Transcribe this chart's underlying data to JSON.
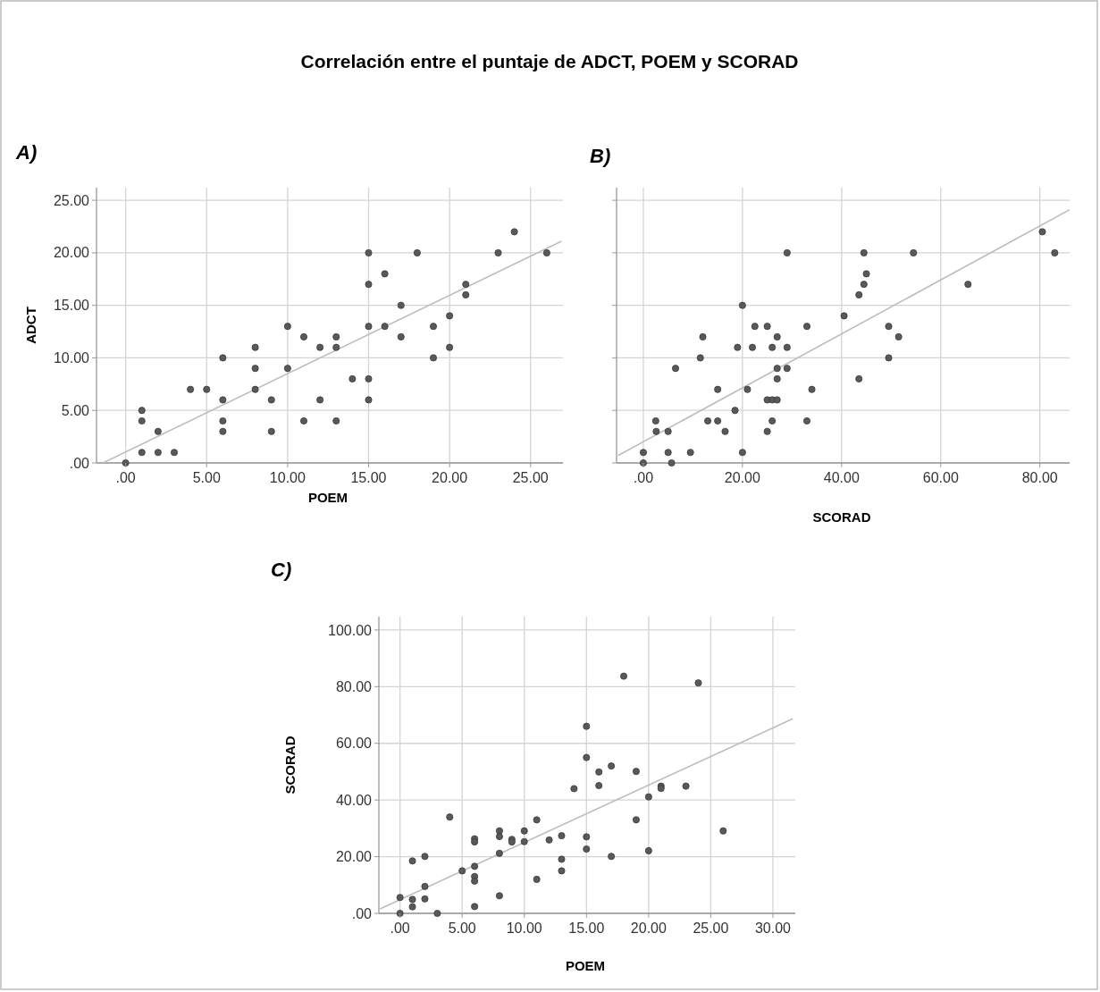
{
  "chart_data": [
    {
      "type": "scatter",
      "title": "A)",
      "annotations": [
        "Correlación entre el puntaje de ADCT, POEM y SCORAD"
      ],
      "xlabel": "POEM",
      "ylabel": "ADCT",
      "xlim": [
        -1.8,
        27
      ],
      "ylim": [
        0,
        26.2
      ],
      "xticks": [
        {
          "value": 0,
          "label": ".00"
        },
        {
          "value": 5,
          "label": "5.00"
        },
        {
          "value": 10,
          "label": "10.00"
        },
        {
          "value": 15,
          "label": "15.00"
        },
        {
          "value": 20,
          "label": "20.00"
        },
        {
          "value": 25,
          "label": "25.00"
        }
      ],
      "yticks": [
        {
          "value": 0,
          "label": ".00"
        },
        {
          "value": 5,
          "label": "5.00"
        },
        {
          "value": 10,
          "label": "10.00"
        },
        {
          "value": 15,
          "label": "15.00"
        },
        {
          "value": 20,
          "label": "20.00"
        },
        {
          "value": 25,
          "label": "25.00"
        }
      ],
      "grid": true,
      "series": [
        {
          "type": "scatter",
          "marker": "circle",
          "color": "#595959",
          "x": [
            0,
            1,
            1,
            1,
            2,
            2,
            3,
            4,
            5,
            6,
            6,
            6,
            6,
            8,
            8,
            8,
            9,
            9,
            10,
            10,
            11,
            11,
            12,
            12,
            13,
            13,
            13,
            14,
            15,
            15,
            15,
            15,
            15,
            16,
            16,
            17,
            17,
            18,
            19,
            19,
            20,
            20,
            21,
            21,
            23,
            24,
            26
          ],
          "values": [
            0,
            5,
            4,
            1,
            3,
            1,
            1,
            7,
            7,
            10,
            6,
            4,
            3,
            11,
            9,
            7,
            6,
            3,
            13,
            9,
            12,
            4,
            11,
            6,
            12,
            11,
            4,
            8,
            20,
            17,
            13,
            8,
            6,
            18,
            13,
            15,
            12,
            20,
            13,
            10,
            14,
            11,
            17,
            16,
            20,
            22,
            20
          ]
        },
        {
          "type": "line",
          "color": "#bdbdbd",
          "x": [
            -1.4,
            26.9
          ],
          "values": [
            0,
            21.1
          ]
        }
      ]
    },
    {
      "type": "scatter",
      "title": "B)",
      "xlabel": "SCORAD",
      "xlim": [
        -5.4,
        86
      ],
      "ylim": [
        0,
        26.2
      ],
      "tick_labels": "x",
      "xticks": [
        {
          "value": 0,
          "label": ".00"
        },
        {
          "value": 20,
          "label": "20.00"
        },
        {
          "value": 40,
          "label": "40.00"
        },
        {
          "value": 60,
          "label": "60.00"
        },
        {
          "value": 80,
          "label": "80.00"
        }
      ],
      "yticks": [
        {
          "value": 0,
          "label": null
        },
        {
          "value": 5,
          "label": null
        },
        {
          "value": 10,
          "label": null
        },
        {
          "value": 15,
          "label": null
        },
        {
          "value": 20,
          "label": null
        },
        {
          "value": 25,
          "label": null
        }
      ],
      "grid": true,
      "series": [
        {
          "type": "scatter",
          "marker": "circle",
          "color": "#595959",
          "x": [
            29,
            20,
            22.5,
            25,
            33,
            12,
            27,
            19,
            22,
            26,
            29,
            11.5,
            6.5,
            27,
            29,
            27,
            15,
            21,
            34,
            25,
            26,
            27,
            18.5,
            2.5,
            13,
            15,
            26,
            33,
            2.6,
            5,
            16.5,
            25,
            0,
            5,
            9.5,
            20,
            0,
            5.7,
            80.5,
            83,
            44.5,
            54.5,
            45,
            44.5,
            65.5,
            43.5,
            40.5,
            49.5,
            51.5,
            49.5,
            43.5
          ],
          "values": [
            20,
            15,
            13,
            13,
            13,
            12,
            12,
            11,
            11,
            11,
            11,
            10,
            9,
            9,
            9,
            8,
            7,
            7,
            7,
            6,
            6,
            6,
            5,
            4,
            4,
            4,
            4,
            4,
            3,
            3,
            3,
            3,
            1,
            1,
            1,
            1,
            0,
            0,
            22,
            20,
            20,
            20,
            18,
            17,
            17,
            16,
            14,
            13,
            12,
            10,
            8
          ]
        },
        {
          "type": "line",
          "color": "#bdbdbd",
          "x": [
            -5.1,
            86
          ],
          "values": [
            0.7,
            24.1
          ]
        }
      ]
    },
    {
      "type": "scatter",
      "title": "C)",
      "xlabel": "POEM",
      "ylabel": "SCORAD",
      "xlim": [
        -1.7,
        31.8
      ],
      "ylim": [
        0,
        104.7
      ],
      "xticks": [
        {
          "value": 0,
          "label": ".00"
        },
        {
          "value": 5,
          "label": "5.00"
        },
        {
          "value": 10,
          "label": "10.00"
        },
        {
          "value": 15,
          "label": "15.00"
        },
        {
          "value": 20,
          "label": "20.00"
        },
        {
          "value": 25,
          "label": "25.00"
        },
        {
          "value": 30,
          "label": "30.00"
        }
      ],
      "yticks": [
        {
          "value": 0,
          "label": ".00"
        },
        {
          "value": 20,
          "label": "20.00"
        },
        {
          "value": 40,
          "label": "40.00"
        },
        {
          "value": 60,
          "label": "60.00"
        },
        {
          "value": 80,
          "label": "80.00"
        },
        {
          "value": 100,
          "label": "100.00"
        }
      ],
      "grid": true,
      "series": [
        {
          "type": "scatter",
          "marker": "circle",
          "color": "#595959",
          "x": [
            0,
            0,
            1,
            1,
            1,
            2,
            2,
            2,
            3,
            4,
            5,
            6,
            6,
            6,
            6,
            6,
            6,
            8,
            8,
            8,
            8,
            9,
            9,
            10,
            10,
            11,
            11,
            12,
            13,
            13,
            13,
            14,
            15,
            15,
            15,
            15,
            18,
            24,
            17,
            16,
            19,
            16,
            21,
            21,
            23,
            20,
            19,
            26,
            20,
            17
          ],
          "values": [
            5.6,
            0,
            18.5,
            4.9,
            2.3,
            20.1,
            9.5,
            5.1,
            0,
            34,
            15,
            26.3,
            25.2,
            16.6,
            13,
            11.4,
            2.4,
            29.1,
            27.1,
            21.2,
            6.2,
            26.1,
            25.2,
            29.1,
            25.3,
            33,
            12,
            25.9,
            27.4,
            19.1,
            15,
            44,
            66,
            55,
            27,
            22.7,
            83.7,
            81.3,
            52,
            49.9,
            50.1,
            45.1,
            44.9,
            44.1,
            44.9,
            41.1,
            33,
            29.1,
            22.1,
            20.1
          ]
        },
        {
          "type": "line",
          "color": "#bdbdbd",
          "x": [
            -1.6,
            31.6
          ],
          "values": [
            1.6,
            68.7
          ]
        }
      ]
    }
  ]
}
